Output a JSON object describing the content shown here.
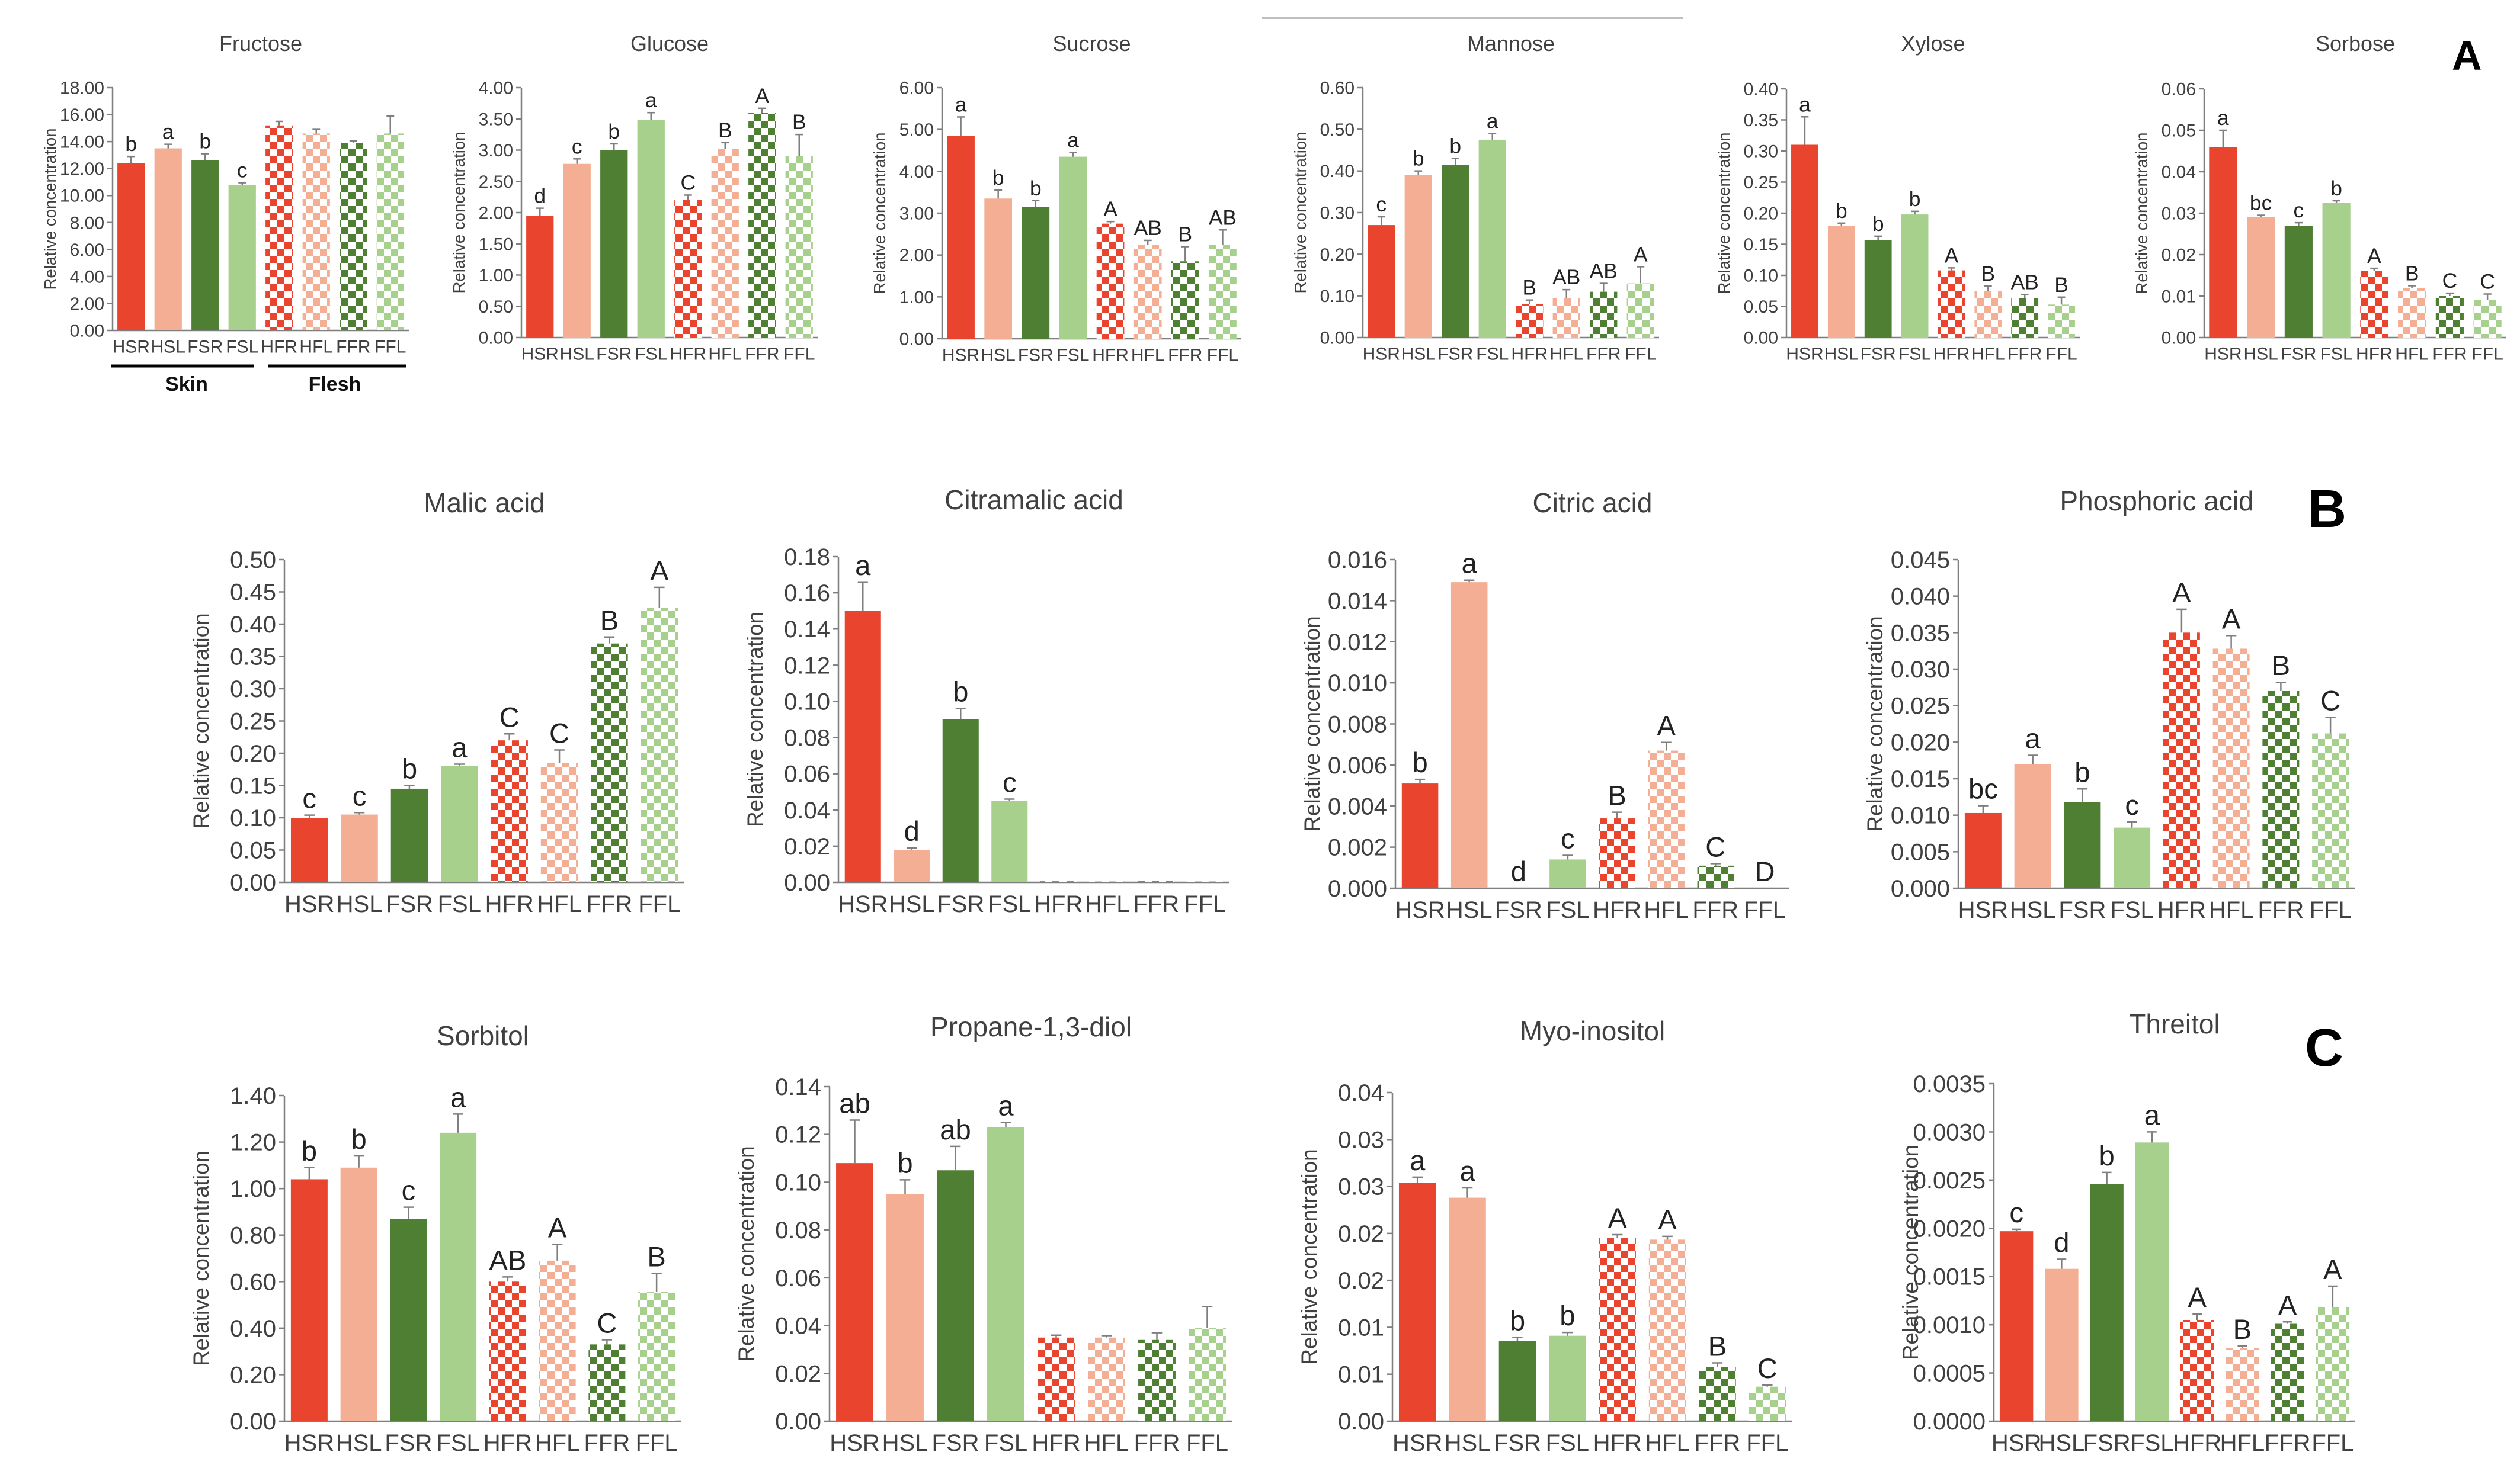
{
  "panel_labels": [
    "A",
    "B",
    "C"
  ],
  "group_labels": {
    "skin": "Skin",
    "flesh": "Flesh"
  },
  "colors": {
    "HSR": "#e8442e",
    "HSL": "#f4ae94",
    "FSR": "#4f7f33",
    "FSL": "#a6d08c",
    "axis": "#7f7f7f",
    "text": "#404040",
    "error": "#7f7f7f"
  },
  "chart_data": [
    {
      "type": "bar",
      "title": "Fructose",
      "ylabel": "Relative concentration",
      "ylim": [
        0,
        18
      ],
      "ticks": [
        "0.00",
        "2.00",
        "4.00",
        "6.00",
        "8.00",
        "10.00",
        "12.00",
        "14.00",
        "16.00",
        "18.00"
      ],
      "categories": [
        "HSR",
        "HSL",
        "FSR",
        "FSL",
        "HFR",
        "HFL",
        "FFR",
        "FFL"
      ],
      "values": [
        12.4,
        13.5,
        12.6,
        10.8,
        15.2,
        14.6,
        13.9,
        14.6
      ],
      "errors": [
        0.5,
        0.3,
        0.5,
        0.15,
        0.3,
        0.3,
        0.15,
        1.3
      ],
      "letters": [
        "b",
        "a",
        "b",
        "c",
        "",
        "",
        "",
        ""
      ]
    },
    {
      "type": "bar",
      "title": "Glucose",
      "ylabel": "Relative concentration",
      "ylim": [
        0,
        4
      ],
      "ticks": [
        "0.00",
        "0.50",
        "1.00",
        "1.50",
        "2.00",
        "2.50",
        "3.00",
        "3.50",
        "4.00"
      ],
      "categories": [
        "HSR",
        "HSL",
        "FSR",
        "FSL",
        "HFR",
        "HFL",
        "FFR",
        "FFL"
      ],
      "values": [
        1.95,
        2.78,
        3.0,
        3.48,
        2.2,
        3.02,
        3.6,
        2.9
      ],
      "errors": [
        0.12,
        0.08,
        0.1,
        0.12,
        0.08,
        0.1,
        0.07,
        0.35
      ],
      "letters": [
        "d",
        "c",
        "b",
        "a",
        "C",
        "B",
        "A",
        "B"
      ]
    },
    {
      "type": "bar",
      "title": "Sucrose",
      "ylabel": "Relative concentration",
      "ylim": [
        0,
        6
      ],
      "ticks": [
        "0.00",
        "1.00",
        "2.00",
        "3.00",
        "4.00",
        "5.00",
        "6.00"
      ],
      "categories": [
        "HSR",
        "HSL",
        "FSR",
        "FSL",
        "HFR",
        "HFL",
        "FFR",
        "FFL"
      ],
      "values": [
        4.85,
        3.35,
        3.15,
        4.35,
        2.75,
        2.25,
        1.85,
        2.25
      ],
      "errors": [
        0.45,
        0.2,
        0.15,
        0.1,
        0.05,
        0.1,
        0.35,
        0.35
      ],
      "letters": [
        "a",
        "b",
        "b",
        "a",
        "A",
        "AB",
        "B",
        "AB"
      ]
    },
    {
      "type": "bar",
      "title": "Mannose",
      "ylabel": "Relative concentration",
      "ylim": [
        0,
        0.6
      ],
      "ticks": [
        "0.00",
        "0.10",
        "0.20",
        "0.30",
        "0.40",
        "0.50",
        "0.60"
      ],
      "categories": [
        "HSR",
        "HSL",
        "FSR",
        "FSL",
        "HFR",
        "HFL",
        "FFR",
        "FFL"
      ],
      "values": [
        0.27,
        0.39,
        0.415,
        0.475,
        0.08,
        0.095,
        0.11,
        0.13
      ],
      "errors": [
        0.02,
        0.01,
        0.015,
        0.015,
        0.01,
        0.02,
        0.02,
        0.04
      ],
      "letters": [
        "c",
        "b",
        "b",
        "a",
        "B",
        "AB",
        "AB",
        "A"
      ]
    },
    {
      "type": "bar",
      "title": "Xylose",
      "ylabel": "Relative concentration",
      "ylim": [
        0,
        0.4
      ],
      "ticks": [
        "0.00",
        "0.05",
        "0.10",
        "0.15",
        "0.20",
        "0.25",
        "0.30",
        "0.35",
        "0.40"
      ],
      "categories": [
        "HSR",
        "HSL",
        "FSR",
        "FSL",
        "HFR",
        "HFL",
        "FFR",
        "FFL"
      ],
      "values": [
        0.31,
        0.18,
        0.157,
        0.198,
        0.108,
        0.075,
        0.063,
        0.053
      ],
      "errors": [
        0.045,
        0.004,
        0.006,
        0.005,
        0.004,
        0.008,
        0.006,
        0.012
      ],
      "letters": [
        "a",
        "b",
        "b",
        "b",
        "A",
        "B",
        "AB",
        "B"
      ]
    },
    {
      "type": "bar",
      "title": "Sorbose",
      "ylabel": "Relative concentration",
      "ylim": [
        0,
        0.06
      ],
      "ticks": [
        "0.00",
        "0.01",
        "0.02",
        "0.03",
        "0.04",
        "0.05",
        "0.06"
      ],
      "categories": [
        "HSR",
        "HSL",
        "FSR",
        "FSL",
        "HFR",
        "HFL",
        "FFR",
        "FFL"
      ],
      "values": [
        0.046,
        0.029,
        0.027,
        0.0325,
        0.016,
        0.012,
        0.01,
        0.009
      ],
      "errors": [
        0.004,
        0.0005,
        0.0007,
        0.0005,
        0.0007,
        0.0005,
        0.0007,
        0.0015
      ],
      "letters": [
        "a",
        "bc",
        "c",
        "b",
        "A",
        "B",
        "C",
        "C"
      ]
    },
    {
      "type": "bar",
      "title": "Malic acid",
      "ylabel": "Relative concentration",
      "ylim": [
        0,
        0.5
      ],
      "ticks": [
        "0.00",
        "0.05",
        "0.10",
        "0.15",
        "0.20",
        "0.25",
        "0.30",
        "0.35",
        "0.40",
        "0.45",
        "0.50"
      ],
      "categories": [
        "HSR",
        "HSL",
        "FSR",
        "FSL",
        "HFR",
        "HFL",
        "FFR",
        "FFL"
      ],
      "values": [
        0.1,
        0.105,
        0.145,
        0.18,
        0.22,
        0.185,
        0.37,
        0.425
      ],
      "errors": [
        0.004,
        0.003,
        0.005,
        0.003,
        0.01,
        0.02,
        0.01,
        0.032
      ],
      "letters": [
        "c",
        "c",
        "b",
        "a",
        "C",
        "C",
        "B",
        "A"
      ]
    },
    {
      "type": "bar",
      "title": "Citramalic acid",
      "ylabel": "Relative concentration",
      "ylim": [
        0,
        0.18
      ],
      "ticks": [
        "0.00",
        "0.02",
        "0.04",
        "0.06",
        "0.08",
        "0.10",
        "0.12",
        "0.14",
        "0.16",
        "0.18"
      ],
      "categories": [
        "HSR",
        "HSL",
        "FSR",
        "FSL",
        "HFR",
        "HFL",
        "FFR",
        "FFL"
      ],
      "values": [
        0.15,
        0.018,
        0.09,
        0.045,
        0.0006,
        0.0006,
        0.0006,
        0.0006
      ],
      "errors": [
        0.016,
        0.001,
        0.006,
        0.001,
        0,
        0,
        0,
        0
      ],
      "letters": [
        "a",
        "d",
        "b",
        "c",
        "",
        "",
        "",
        ""
      ]
    },
    {
      "type": "bar",
      "title": "Citric acid",
      "ylabel": "Relative concentration",
      "ylim": [
        0,
        0.016
      ],
      "ticks": [
        "0.000",
        "0.002",
        "0.004",
        "0.006",
        "0.008",
        "0.010",
        "0.012",
        "0.014",
        "0.016"
      ],
      "categories": [
        "HSR",
        "HSL",
        "FSR",
        "FSL",
        "HFR",
        "HFL",
        "FFR",
        "FFL"
      ],
      "values": [
        0.0051,
        0.0149,
        0,
        0.0014,
        0.0034,
        0.0067,
        0.0011,
        0
      ],
      "errors": [
        0.0002,
        0.0001,
        0,
        0.0002,
        0.0003,
        0.0004,
        0.0001,
        0
      ],
      "letters": [
        "b",
        "a",
        "d",
        "c",
        "B",
        "A",
        "C",
        "D"
      ]
    },
    {
      "type": "bar",
      "title": "Phosphoric acid",
      "ylabel": "Relative concentration",
      "ylim": [
        0,
        0.045
      ],
      "ticks": [
        "0.000",
        "0.005",
        "0.010",
        "0.015",
        "0.020",
        "0.025",
        "0.030",
        "0.035",
        "0.040",
        "0.045"
      ],
      "categories": [
        "HSR",
        "HSL",
        "FSR",
        "FSL",
        "HFR",
        "HFL",
        "FFR",
        "FFL"
      ],
      "values": [
        0.0103,
        0.017,
        0.0118,
        0.0083,
        0.035,
        0.0328,
        0.027,
        0.0212
      ],
      "errors": [
        0.001,
        0.0012,
        0.0018,
        0.0008,
        0.0032,
        0.0018,
        0.0012,
        0.0022
      ],
      "letters": [
        "bc",
        "a",
        "b",
        "c",
        "A",
        "A",
        "B",
        "C"
      ]
    },
    {
      "type": "bar",
      "title": "Sorbitol",
      "ylabel": "Relative concentration",
      "ylim": [
        0,
        1.4
      ],
      "ticks": [
        "0.00",
        "0.20",
        "0.40",
        "0.60",
        "0.80",
        "1.00",
        "1.20",
        "1.40"
      ],
      "categories": [
        "HSR",
        "HSL",
        "FSR",
        "FSL",
        "HFR",
        "HFL",
        "FFR",
        "FFL"
      ],
      "values": [
        1.04,
        1.09,
        0.87,
        1.24,
        0.6,
        0.69,
        0.33,
        0.555
      ],
      "errors": [
        0.05,
        0.05,
        0.05,
        0.08,
        0.02,
        0.07,
        0.02,
        0.08
      ],
      "letters": [
        "b",
        "b",
        "c",
        "a",
        "AB",
        "A",
        "C",
        "B"
      ]
    },
    {
      "type": "bar",
      "title": "Propane-1,3-diol",
      "ylabel": "Relative concentration",
      "ylim": [
        0,
        0.14
      ],
      "ticks": [
        "0.00",
        "0.02",
        "0.04",
        "0.06",
        "0.08",
        "0.10",
        "0.12",
        "0.14"
      ],
      "categories": [
        "HSR",
        "HSL",
        "FSR",
        "FSL",
        "HFR",
        "HFL",
        "FFR",
        "FFL"
      ],
      "values": [
        0.108,
        0.095,
        0.105,
        0.123,
        0.035,
        0.035,
        0.034,
        0.039
      ],
      "errors": [
        0.018,
        0.006,
        0.01,
        0.002,
        0.001,
        0.0008,
        0.003,
        0.009
      ],
      "letters": [
        "ab",
        "b",
        "ab",
        "a",
        "",
        "",
        "",
        ""
      ]
    },
    {
      "type": "bar",
      "title": "Myo-inositol",
      "ylabel": "Relative concentration",
      "ylim": [
        0,
        0.04
      ],
      "ticks": [
        "0.00",
        "0.01",
        "0.01",
        "0.02",
        "0.02",
        "0.03",
        "0.03",
        "0.04"
      ],
      "categories": [
        "HSR",
        "HSL",
        "FSR",
        "FSL",
        "HFR",
        "HFL",
        "FFR",
        "FFL"
      ],
      "values": [
        0.029,
        0.0272,
        0.0098,
        0.0104,
        0.0223,
        0.0221,
        0.0066,
        0.0042
      ],
      "errors": [
        0.0007,
        0.0012,
        0.0004,
        0.0004,
        0.0004,
        0.0004,
        0.0005,
        0.0002
      ],
      "letters": [
        "a",
        "a",
        "b",
        "b",
        "A",
        "A",
        "B",
        "C"
      ]
    },
    {
      "type": "bar",
      "title": "Threitol",
      "ylabel": "Relative concentration",
      "ylim": [
        0,
        0.0035
      ],
      "ticks": [
        "0.0000",
        "0.0005",
        "0.0010",
        "0.0015",
        "0.0020",
        "0.0025",
        "0.0030",
        "0.0035"
      ],
      "categories": [
        "HSR",
        "HSL",
        "FSR",
        "FSL",
        "HFR",
        "HFL",
        "FFR",
        "FFL"
      ],
      "values": [
        0.00197,
        0.00158,
        0.00246,
        0.00289,
        0.00105,
        0.00076,
        0.00101,
        0.00118
      ],
      "errors": [
        2e-05,
        0.0001,
        0.00012,
        0.00011,
        6e-05,
        2e-05,
        2e-05,
        0.00022
      ],
      "letters": [
        "c",
        "d",
        "b",
        "a",
        "A",
        "B",
        "A",
        "A"
      ]
    }
  ]
}
